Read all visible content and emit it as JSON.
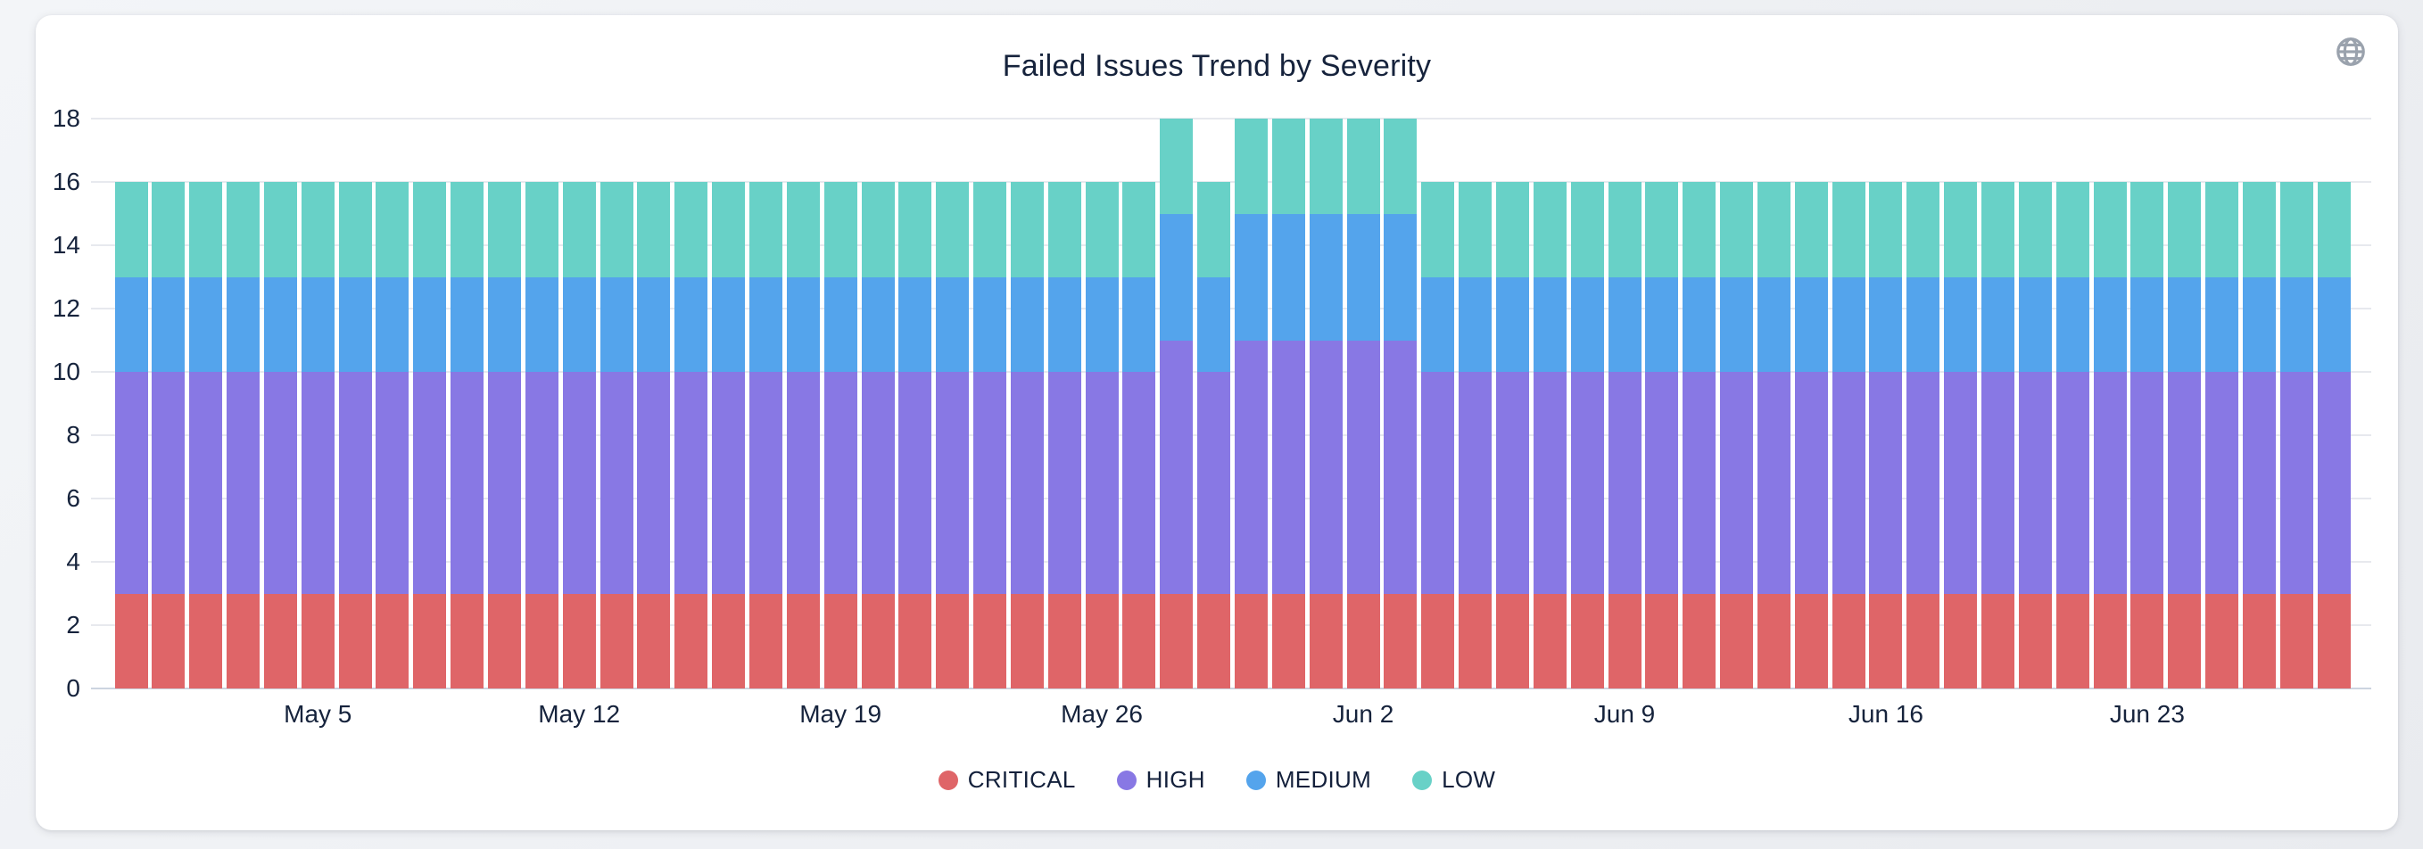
{
  "header": {
    "title": "Failed Issues Trend by Severity",
    "icons": {
      "globe": "globe-icon"
    }
  },
  "colors": {
    "critical": "#df6568",
    "high": "#8878e4",
    "medium": "#54a4ec",
    "low": "#68d1c7",
    "title_text": "#16233c",
    "axis_text": "#16233c",
    "gridline": "#e7e9ee",
    "axis_line": "#ccd4e0",
    "card_bg": "#ffffff",
    "page_bg": "#edeff3",
    "globe_icon": "#9aa2ad"
  },
  "chart_data": {
    "type": "bar",
    "stacked": true,
    "title": "Failed Issues Trend by Severity",
    "xlabel": "",
    "ylabel": "",
    "ylim": [
      0,
      18
    ],
    "yticks": [
      0,
      2,
      4,
      6,
      8,
      10,
      12,
      14,
      16,
      18
    ],
    "grid": true,
    "legend_position": "bottom",
    "x": [
      "Apr 30",
      "May 1",
      "May 2",
      "May 3",
      "May 4",
      "May 5",
      "May 6",
      "May 7",
      "May 8",
      "May 9",
      "May 10",
      "May 11",
      "May 12",
      "May 13",
      "May 14",
      "May 15",
      "May 16",
      "May 17",
      "May 18",
      "May 19",
      "May 20",
      "May 21",
      "May 22",
      "May 23",
      "May 24",
      "May 25",
      "May 26",
      "May 27",
      "May 28",
      "May 29",
      "May 30",
      "May 31",
      "Jun 1",
      "Jun 2",
      "Jun 3",
      "Jun 4",
      "Jun 5",
      "Jun 6",
      "Jun 7",
      "Jun 8",
      "Jun 9",
      "Jun 10",
      "Jun 11",
      "Jun 12",
      "Jun 13",
      "Jun 14",
      "Jun 15",
      "Jun 16",
      "Jun 17",
      "Jun 18",
      "Jun 19",
      "Jun 20",
      "Jun 21",
      "Jun 22",
      "Jun 23",
      "Jun 24",
      "Jun 25",
      "Jun 26",
      "Jun 27",
      "Jun 28"
    ],
    "x_ticks_shown": [
      {
        "index": 5,
        "label": "May 5"
      },
      {
        "index": 12,
        "label": "May 12"
      },
      {
        "index": 19,
        "label": "May 19"
      },
      {
        "index": 26,
        "label": "May 26"
      },
      {
        "index": 33,
        "label": "Jun 2"
      },
      {
        "index": 40,
        "label": "Jun 9"
      },
      {
        "index": 47,
        "label": "Jun 16"
      },
      {
        "index": 54,
        "label": "Jun 23"
      }
    ],
    "series": [
      {
        "name": "CRITICAL",
        "color": "#df6568",
        "values": [
          3,
          3,
          3,
          3,
          3,
          3,
          3,
          3,
          3,
          3,
          3,
          3,
          3,
          3,
          3,
          3,
          3,
          3,
          3,
          3,
          3,
          3,
          3,
          3,
          3,
          3,
          3,
          3,
          3,
          3,
          3,
          3,
          3,
          3,
          3,
          3,
          3,
          3,
          3,
          3,
          3,
          3,
          3,
          3,
          3,
          3,
          3,
          3,
          3,
          3,
          3,
          3,
          3,
          3,
          3,
          3,
          3,
          3,
          3,
          3
        ]
      },
      {
        "name": "HIGH",
        "color": "#8878e4",
        "values": [
          7,
          7,
          7,
          7,
          7,
          7,
          7,
          7,
          7,
          7,
          7,
          7,
          7,
          7,
          7,
          7,
          7,
          7,
          7,
          7,
          7,
          7,
          7,
          7,
          7,
          7,
          7,
          7,
          8,
          7,
          8,
          8,
          8,
          8,
          8,
          7,
          7,
          7,
          7,
          7,
          7,
          7,
          7,
          7,
          7,
          7,
          7,
          7,
          7,
          7,
          7,
          7,
          7,
          7,
          7,
          7,
          7,
          7,
          7,
          7
        ]
      },
      {
        "name": "MEDIUM",
        "color": "#54a4ec",
        "values": [
          3,
          3,
          3,
          3,
          3,
          3,
          3,
          3,
          3,
          3,
          3,
          3,
          3,
          3,
          3,
          3,
          3,
          3,
          3,
          3,
          3,
          3,
          3,
          3,
          3,
          3,
          3,
          3,
          4,
          3,
          4,
          4,
          4,
          4,
          4,
          3,
          3,
          3,
          3,
          3,
          3,
          3,
          3,
          3,
          3,
          3,
          3,
          3,
          3,
          3,
          3,
          3,
          3,
          3,
          3,
          3,
          3,
          3,
          3,
          3
        ]
      },
      {
        "name": "LOW",
        "color": "#68d1c7",
        "values": [
          3,
          3,
          3,
          3,
          3,
          3,
          3,
          3,
          3,
          3,
          3,
          3,
          3,
          3,
          3,
          3,
          3,
          3,
          3,
          3,
          3,
          3,
          3,
          3,
          3,
          3,
          3,
          3,
          3,
          3,
          3,
          3,
          3,
          3,
          3,
          3,
          3,
          3,
          3,
          3,
          3,
          3,
          3,
          3,
          3,
          3,
          3,
          3,
          3,
          3,
          3,
          3,
          3,
          3,
          3,
          3,
          3,
          3,
          3,
          3
        ]
      }
    ],
    "legend": [
      "CRITICAL",
      "HIGH",
      "MEDIUM",
      "LOW"
    ]
  }
}
